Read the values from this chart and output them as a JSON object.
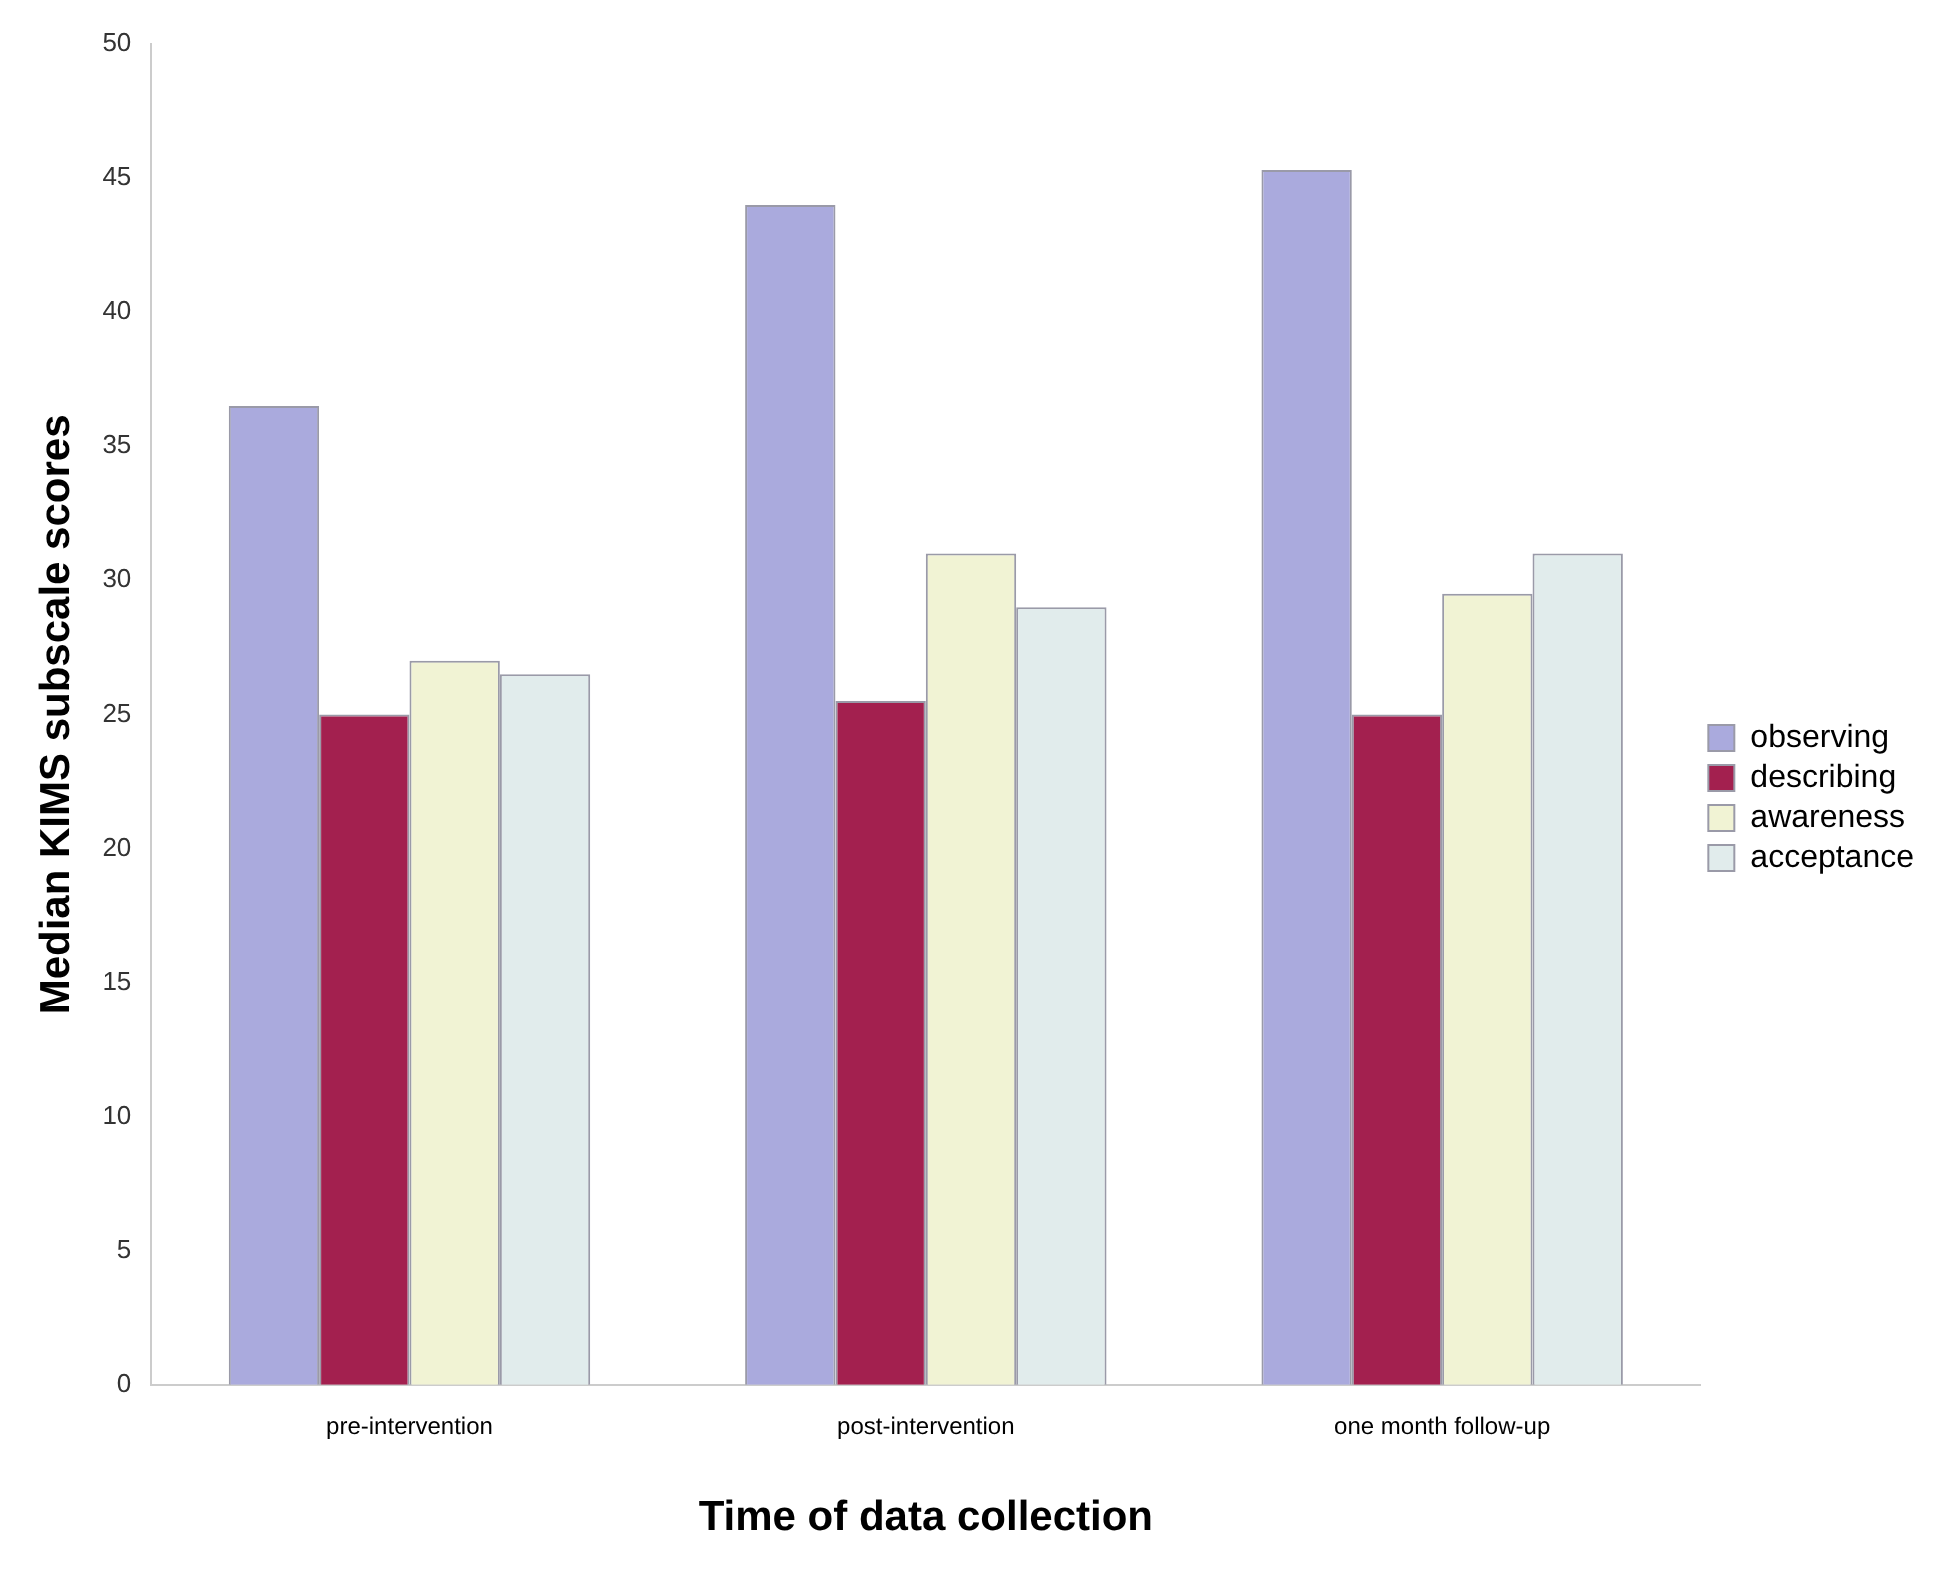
{
  "chart_data": {
    "type": "bar",
    "xlabel": "Time of data collection",
    "ylabel": "Median KIMS subscale scores",
    "categories": [
      "pre-intervention",
      "post-intervention",
      "one month follow-up"
    ],
    "series": [
      {
        "name": "observing",
        "color": "#aaaadd",
        "values": [
          36.5,
          44,
          45.3
        ]
      },
      {
        "name": "describing",
        "color": "#a3204f",
        "values": [
          25,
          25.5,
          25
        ]
      },
      {
        "name": "awareness",
        "color": "#f1f3d4",
        "values": [
          27,
          31,
          29.5
        ]
      },
      {
        "name": "acceptance",
        "color": "#e1ecec",
        "values": [
          26.5,
          29,
          31
        ]
      }
    ],
    "ylim": [
      0,
      50
    ],
    "yticks": [
      0,
      5,
      10,
      15,
      20,
      25,
      30,
      35,
      40,
      45,
      50
    ],
    "grid": false,
    "legend": "right"
  }
}
